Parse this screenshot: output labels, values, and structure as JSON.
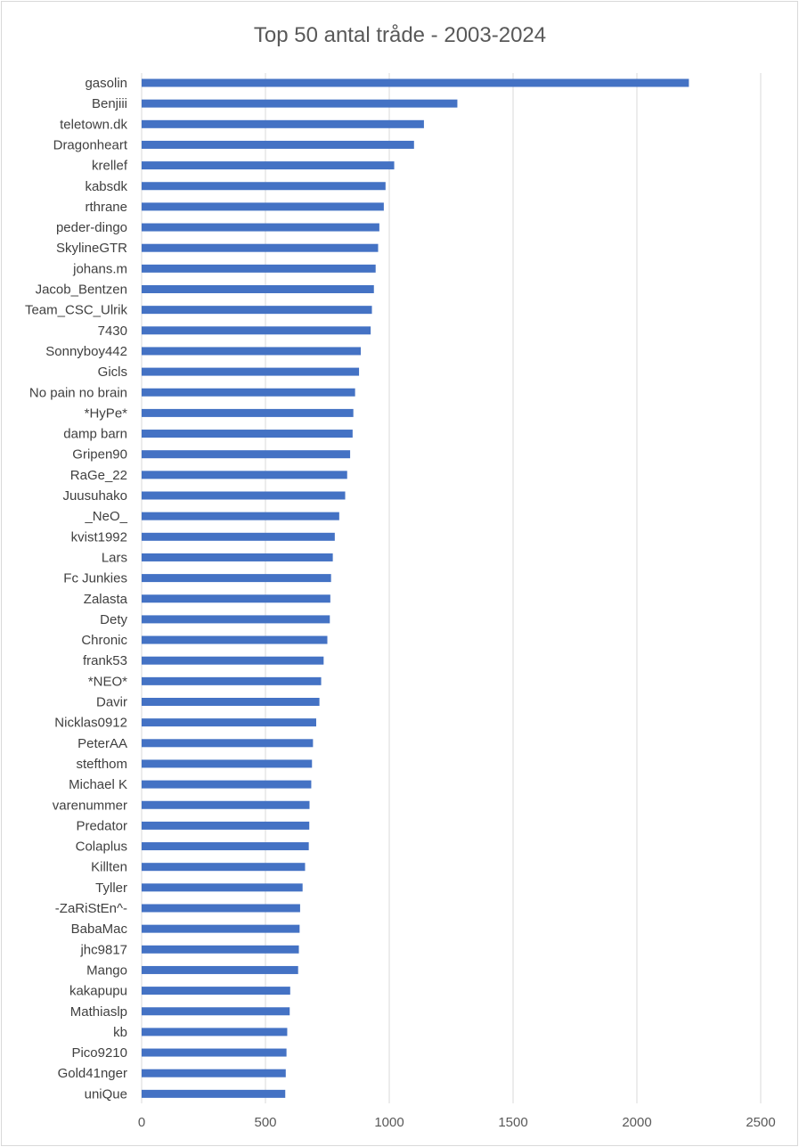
{
  "chart_data": {
    "type": "bar",
    "orientation": "horizontal",
    "title": "Top 50 antal tråde - 2003-2024",
    "xlabel": "",
    "ylabel": "",
    "xlim": [
      0,
      2500
    ],
    "xticks": [
      "0",
      "500",
      "1000",
      "1500",
      "2000",
      "2500"
    ],
    "grid": true,
    "legend": "none",
    "bar_color": "#4472C4",
    "grid_color": "#d9d9d9",
    "categories": [
      "gasolin",
      "Benjiii",
      "teletown.dk",
      "Dragonheart",
      "krellef",
      "kabsdk",
      "rthrane",
      "peder-dingo",
      "SkylineGTR",
      "johans.m",
      "Jacob_Bentzen",
      "Team_CSC_Ulrik",
      "7430",
      "Sonnyboy442",
      "Gicls",
      "No pain no brain",
      "*HyPe*",
      "damp barn",
      "Gripen90",
      "RaGe_22",
      "Juusuhako",
      "_NeO_",
      "kvist1992",
      "Lars",
      "Fc Junkies",
      "Zalasta",
      "Dety",
      "Chronic",
      "frank53",
      "*NEO*",
      "Davir",
      "Nicklas0912",
      "PeterAA",
      "stefthom",
      "Michael K",
      "varenummer",
      "Predator",
      "Colaplus",
      "Killten",
      "Tyller",
      "-ZaRiStEn^-",
      "BabaMac",
      "jhc9817",
      "Mango",
      "kakapupu",
      "Mathiaslp",
      "kb",
      "Pico9210",
      "Gold41nger",
      "uniQue"
    ],
    "values": [
      2210,
      1275,
      1140,
      1100,
      1020,
      985,
      978,
      960,
      955,
      945,
      938,
      930,
      925,
      885,
      878,
      862,
      855,
      852,
      842,
      830,
      822,
      798,
      780,
      772,
      765,
      762,
      760,
      750,
      735,
      725,
      718,
      705,
      692,
      688,
      685,
      678,
      677,
      675,
      660,
      650,
      640,
      638,
      635,
      632,
      600,
      598,
      588,
      585,
      582,
      580
    ]
  }
}
